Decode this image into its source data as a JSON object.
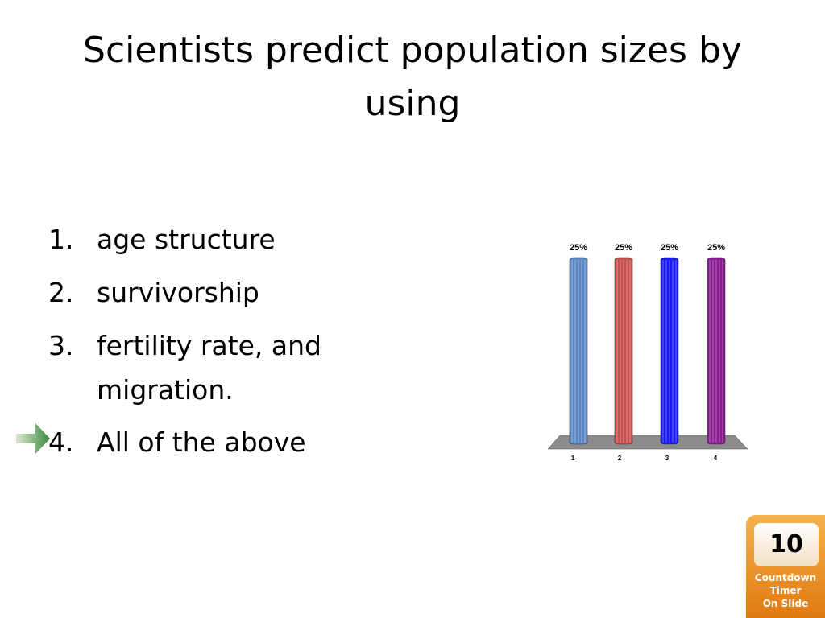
{
  "title": "Scientists predict population sizes by using",
  "options": [
    {
      "number": "1.",
      "text": "age structure"
    },
    {
      "number": "2.",
      "text": "survivorship"
    },
    {
      "number": "3.",
      "text": "fertility rate, and migration."
    },
    {
      "number": "4.",
      "text": "All of the above"
    }
  ],
  "chart_data": {
    "type": "bar",
    "categories": [
      "1",
      "2",
      "3",
      "4"
    ],
    "values": [
      25,
      25,
      25,
      25
    ],
    "value_labels": [
      "25%",
      "25%",
      "25%",
      "25%"
    ],
    "colors": [
      "#5b87c5",
      "#c9504f",
      "#1a1af0",
      "#8a1a96"
    ]
  },
  "timer": {
    "value": "10",
    "label": [
      "Countdown",
      "Timer",
      "On Slide"
    ]
  }
}
